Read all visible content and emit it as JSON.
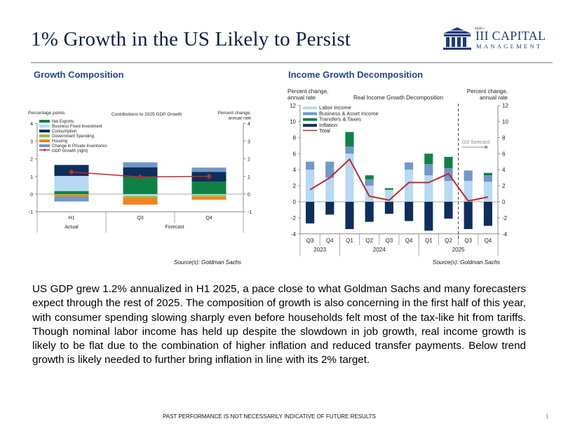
{
  "page": {
    "title": "1% Growth in the US Likely to Persist",
    "logo": {
      "tagline": "triple-i",
      "name": "III CAPITAL",
      "subname": "MANAGEMENT",
      "icon": "columns-building-icon"
    },
    "sections": {
      "left_title": "Growth Composition",
      "right_title": "Income Growth Decomposition"
    },
    "left_source": "Source(s): Goldman Sachs",
    "right_source": "Source(s): Goldman Sachs",
    "body": "US GDP grew 1.2% annualized in H1 2025, a pace close to what Goldman Sachs and many forecasters expect through the rest of 2025. The composition of growth is also concerning in the first half of this year, with consumer spending slowing sharply even before households felt most of the tax-like hit from tariffs. Though nominal labor income has held up despite the slowdown in job growth, real income growth is likely to be flat due to the combination of higher inflation and reduced transfer payments. Below trend growth is likely needed to further bring inflation in line with its 2% target.",
    "disclaimer": "PAST PERFORMANCE IS NOT NECESSARILY INDICATIVE OF FUTURE RESULTS",
    "page_number": "1"
  },
  "chart_data": [
    {
      "type": "bar",
      "stacked": true,
      "title": "Contributions to 2025 GDP Growth",
      "ylabel_left": "Percentage points",
      "ylabel_right": "Percent change, annual rate",
      "ylim": [
        -1,
        4
      ],
      "yticks": [
        -1,
        0,
        1,
        2,
        3,
        4
      ],
      "categories": [
        "H1",
        "Q3",
        "Q4"
      ],
      "category_groups": [
        {
          "label": "Actual",
          "span": [
            "H1"
          ]
        },
        {
          "label": "Forecast",
          "span": [
            "Q3",
            "Q4"
          ]
        }
      ],
      "legend_position": "top-left",
      "series": [
        {
          "name": "Net Exports",
          "color": "#0f8146",
          "values": [
            0.17,
            0.97,
            0.7
          ]
        },
        {
          "name": "Business Fixed Investment",
          "color": "#b7d9f2",
          "values": [
            0.86,
            -0.1,
            -0.05
          ]
        },
        {
          "name": "Consumption",
          "color": "#0d2f5c",
          "values": [
            0.62,
            0.55,
            0.55
          ]
        },
        {
          "name": "Government Spending",
          "color": "#8cc63f",
          "values": [
            -0.04,
            -0.1,
            -0.1
          ]
        },
        {
          "name": "Housing",
          "color": "#f58220",
          "values": [
            -0.1,
            -0.4,
            -0.17
          ]
        },
        {
          "name": "Change in Private Inventories",
          "color": "#7098c9",
          "values": [
            -0.28,
            0.28,
            0.25
          ]
        }
      ],
      "line": {
        "name": "GDP Growth (right)",
        "color": "#c0282d",
        "values": [
          1.25,
          0.97,
          1.0
        ]
      }
    },
    {
      "type": "bar",
      "stacked": true,
      "title": "Real Income Growth Decomposition",
      "ylabel_left": "Percent change, annual rate",
      "ylabel_right": "Percent change, annual rate",
      "ylim": [
        -4,
        12
      ],
      "yticks": [
        -4,
        -2,
        0,
        2,
        4,
        6,
        8,
        10,
        12
      ],
      "categories": [
        "Q3",
        "Q4",
        "Q1",
        "Q2",
        "Q3",
        "Q4",
        "Q1",
        "Q2",
        "Q3",
        "Q4"
      ],
      "category_groups": [
        {
          "label": "2023",
          "count": 2
        },
        {
          "label": "2024",
          "count": 4
        },
        {
          "label": "2025",
          "count": 4
        }
      ],
      "annotation": "GS forecast",
      "forecast_starts_after_index": 7,
      "legend_position": "top-left",
      "series": [
        {
          "name": "Labor Income",
          "color": "#b7d9f2",
          "values": [
            4.0,
            3.0,
            6.0,
            2.0,
            1.5,
            4.0,
            3.3,
            2.6,
            2.6,
            2.5
          ]
        },
        {
          "name": "Business & Asset Income",
          "color": "#7098c9",
          "values": [
            1.0,
            2.0,
            0.9,
            0.8,
            0.0,
            0.9,
            1.4,
            1.6,
            1.3,
            0.8
          ]
        },
        {
          "name": "Transfers & Taxes",
          "color": "#0f8146",
          "values": [
            0,
            0,
            1.8,
            0.5,
            0.2,
            0,
            1.3,
            1.4,
            0,
            0.3
          ]
        },
        {
          "name": "Inflation",
          "color": "#0d2f5c",
          "values": [
            -2.7,
            -1.6,
            -3.4,
            -2.5,
            -1.5,
            -2.4,
            -3.6,
            -2.1,
            -3.4,
            -3.0
          ]
        }
      ],
      "line": {
        "name": "Total",
        "color": "#c0282d",
        "values": [
          1.5,
          3.0,
          5.3,
          0.7,
          0.2,
          2.4,
          2.4,
          3.5,
          0.1,
          0.6
        ]
      }
    }
  ]
}
